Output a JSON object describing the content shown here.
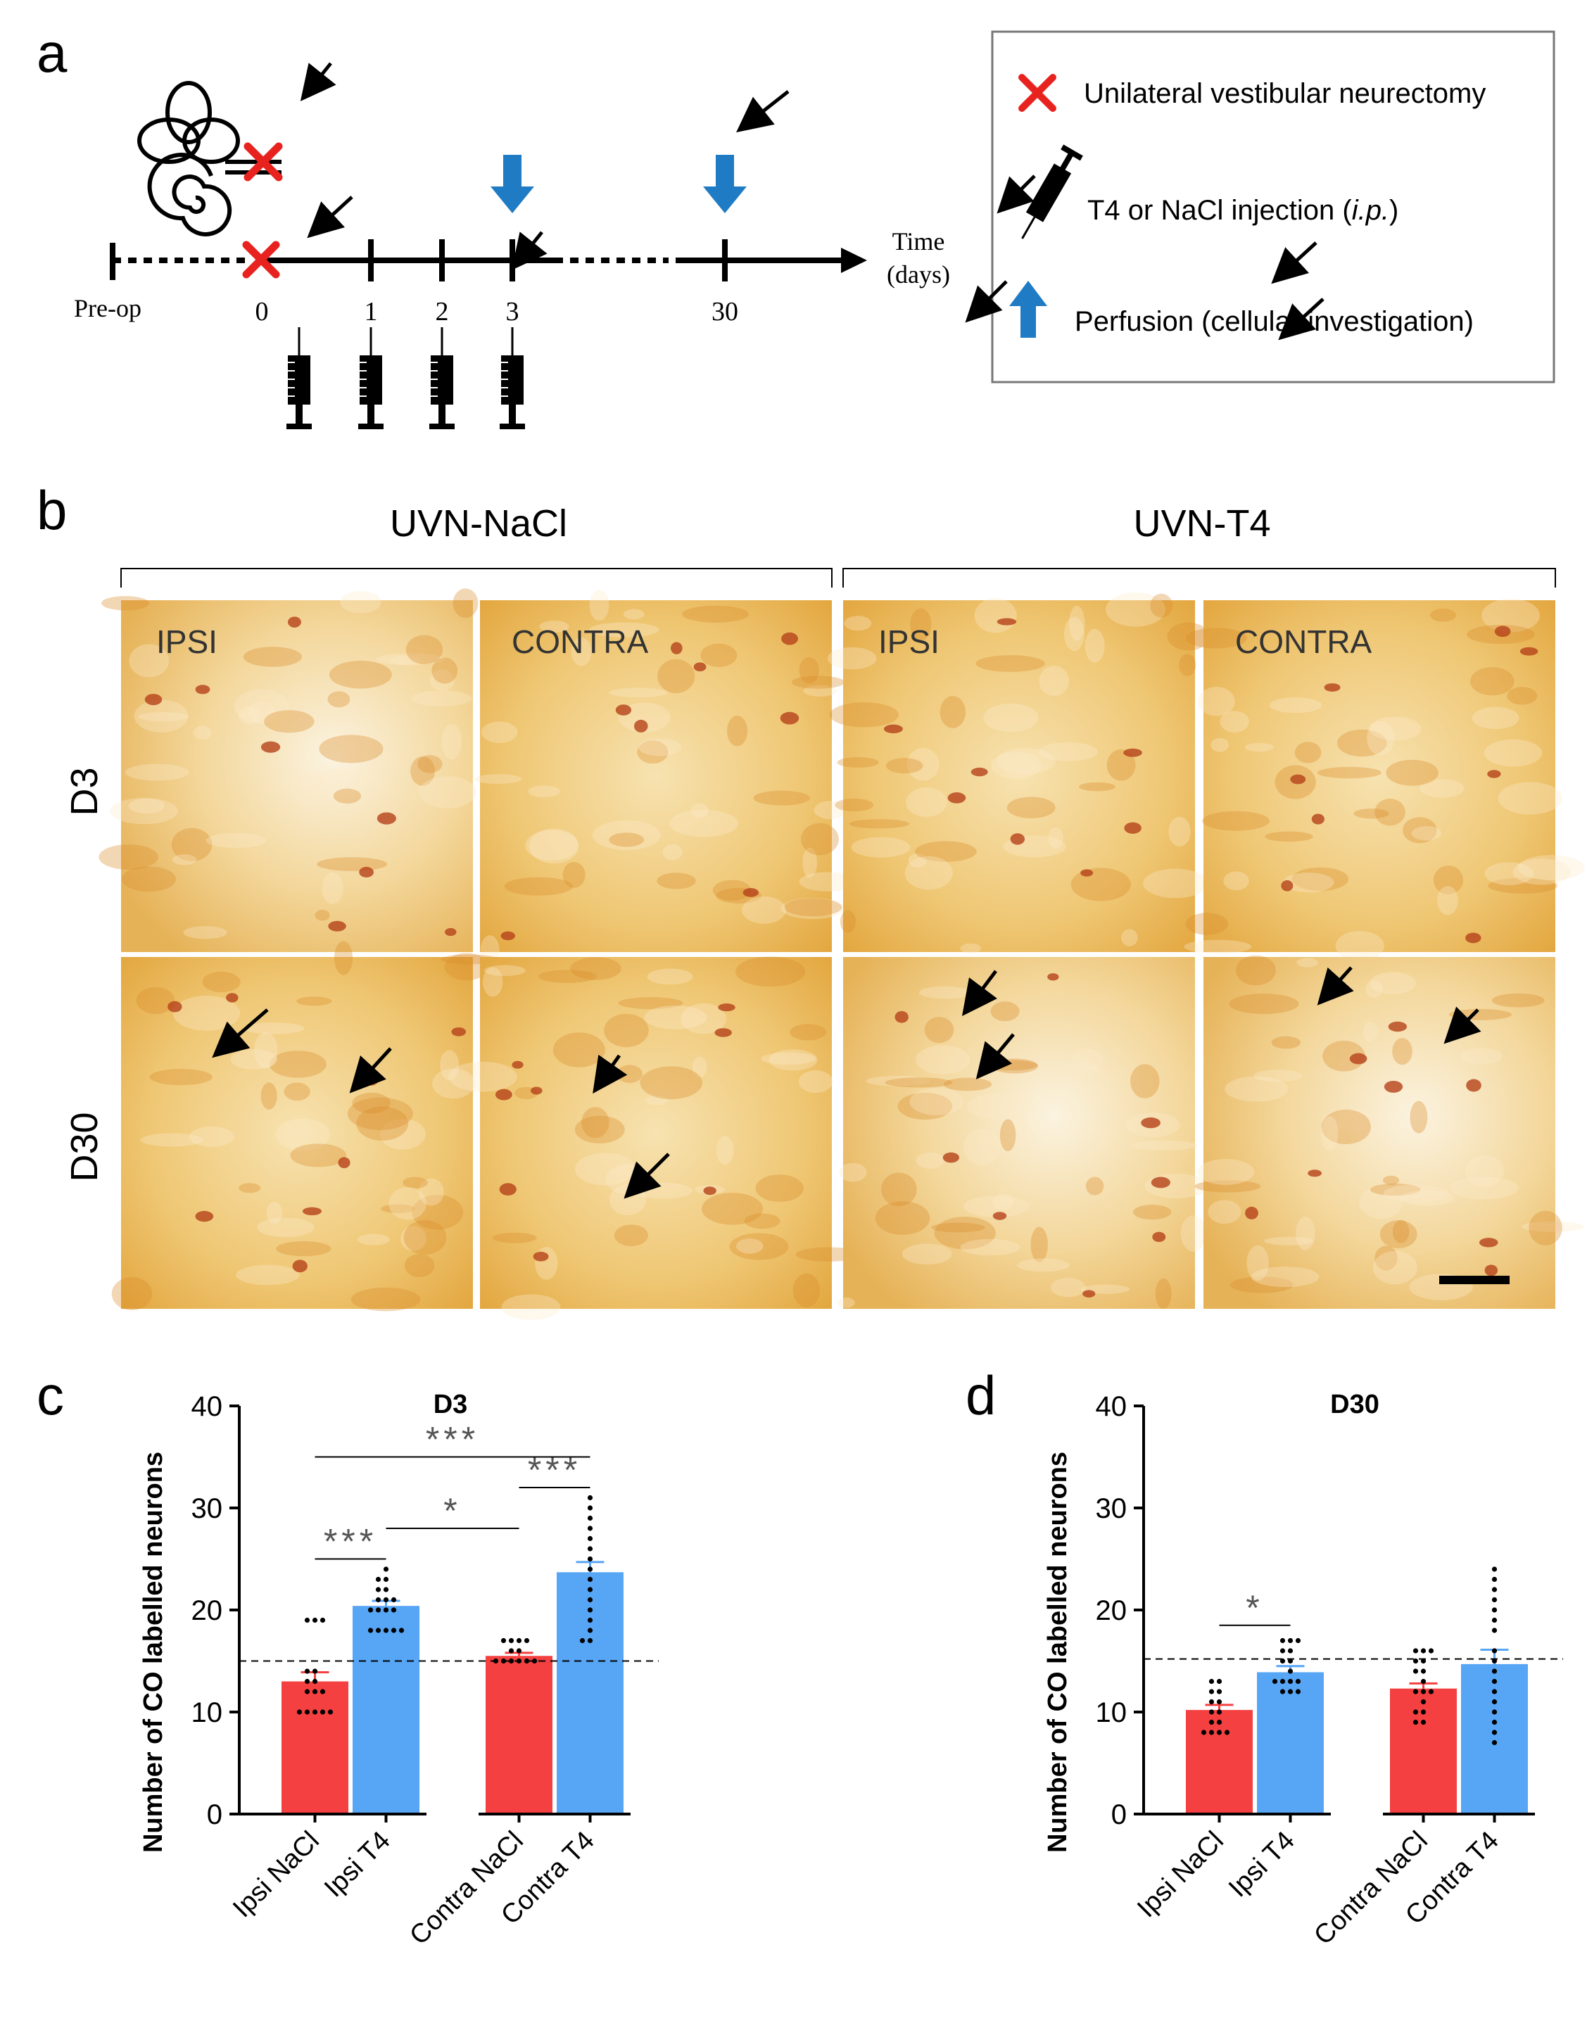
{
  "panel_a": {
    "letter": "a",
    "timeline": {
      "preop_label": "Pre-op",
      "day_labels": [
        "0",
        "1",
        "2",
        "3",
        "30"
      ],
      "axis_label_line1": "Time",
      "axis_label_line2": "(days)"
    },
    "legend": {
      "uvn_text": "Unilateral vestibular neurectomy",
      "injection_text_prefix": "T4 or NaCl injection (",
      "injection_text_italic": "i.p.",
      "injection_text_suffix": ")",
      "perfusion_text": "Perfusion (cellular investigation)"
    },
    "colors": {
      "cross": "#e8231f",
      "arrow": "#1e7bc4"
    }
  },
  "panel_b": {
    "letter": "b",
    "group_left": "UVN-NaCl",
    "group_right": "UVN-T4",
    "row_labels": [
      "D3",
      "D30"
    ],
    "ipsi_label": "IPSI",
    "contra_label": "CONTRA"
  },
  "chart_data": [
    {
      "panel": "c",
      "type": "bar",
      "title": "D3",
      "ylabel": "Number of CO labelled neurons",
      "ylim": [
        0,
        40
      ],
      "yticks": [
        "0",
        "10",
        "20",
        "30",
        "40"
      ],
      "categories": [
        "Ipsi NaCl",
        "Ipsi T4",
        "Contra NaCl",
        "Contra T4"
      ],
      "values": [
        13,
        20.4,
        15.5,
        23.7
      ],
      "sem": [
        0.9,
        0.5,
        0.3,
        1.0
      ],
      "colors": [
        "#f44040",
        "#57a5f5",
        "#f44040",
        "#57a5f5"
      ],
      "reference_line": 15,
      "points": [
        [
          19,
          19,
          19,
          14,
          14,
          13,
          12,
          12,
          10,
          10,
          10,
          10,
          10,
          12,
          13
        ],
        [
          24,
          23,
          23,
          22,
          22,
          21,
          21,
          21,
          20,
          20,
          20,
          20,
          18,
          18,
          18,
          18,
          18
        ],
        [
          17,
          17,
          17,
          17,
          16,
          16,
          15,
          15,
          15,
          15,
          15,
          15
        ],
        [
          31,
          30,
          29,
          28,
          27,
          26,
          25,
          24,
          23,
          22,
          21,
          20,
          18,
          17,
          17,
          19
        ]
      ],
      "significance": [
        {
          "from": 0,
          "to": 3,
          "label": "***",
          "y": 35
        },
        {
          "from": 2,
          "to": 3,
          "label": "***",
          "y": 32
        },
        {
          "from": 1,
          "to": 2,
          "label": "*",
          "y": 28
        },
        {
          "from": 0,
          "to": 1,
          "label": "***",
          "y": 25
        }
      ]
    },
    {
      "panel": "d",
      "type": "bar",
      "title": "D30",
      "ylabel": "Number of CO labelled neurons",
      "ylim": [
        0,
        40
      ],
      "yticks": [
        "0",
        "10",
        "20",
        "30",
        "40"
      ],
      "categories": [
        "Ipsi NaCl",
        "Ipsi T4",
        "Contra NaCl",
        "Contra T4"
      ],
      "values": [
        10.2,
        13.9,
        12.3,
        14.7
      ],
      "sem": [
        0.5,
        0.6,
        0.5,
        1.4
      ],
      "colors": [
        "#f44040",
        "#57a5f5",
        "#f44040",
        "#57a5f5"
      ],
      "reference_line": 15.2,
      "points": [
        [
          13,
          13,
          12,
          12,
          11,
          10,
          9,
          9,
          8,
          8,
          8,
          8,
          10,
          11
        ],
        [
          17,
          17,
          17,
          16,
          16,
          15,
          15,
          14,
          13,
          13,
          13,
          13,
          12,
          12,
          12
        ],
        [
          16,
          16,
          16,
          15,
          15,
          14,
          14,
          13,
          12,
          12,
          12,
          11,
          10,
          10,
          9,
          9
        ],
        [
          24,
          23,
          22,
          21,
          20,
          19,
          18,
          16,
          15,
          14,
          13,
          12,
          11,
          10,
          9,
          8,
          7
        ]
      ],
      "significance": [
        {
          "from": 0,
          "to": 1,
          "label": "*",
          "y": 18.5
        }
      ]
    }
  ]
}
